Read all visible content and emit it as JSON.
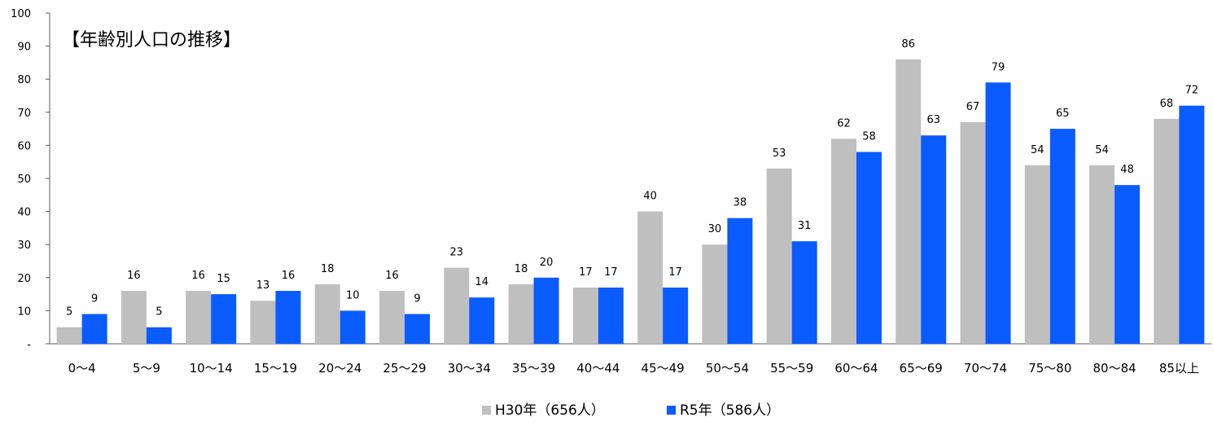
{
  "chart_data": {
    "type": "bar",
    "title": "【年齢別人口の推移】",
    "categories": [
      "0～4",
      "5～9",
      "10～14",
      "15～19",
      "20～24",
      "25～29",
      "30～34",
      "35～39",
      "40～44",
      "45～49",
      "50～54",
      "55～59",
      "60～64",
      "65～69",
      "70～74",
      "75～80",
      "80～84",
      "85以上"
    ],
    "series": [
      {
        "name": "H30年（656人）",
        "color": "#bfbfbf",
        "values": [
          5,
          16,
          16,
          13,
          18,
          16,
          23,
          18,
          17,
          40,
          30,
          53,
          62,
          86,
          67,
          54,
          54,
          68
        ]
      },
      {
        "name": "R5年（586人）",
        "color": "#0a5cff",
        "values": [
          9,
          5,
          15,
          16,
          10,
          9,
          14,
          20,
          17,
          17,
          38,
          31,
          58,
          63,
          79,
          65,
          48,
          72
        ]
      }
    ],
    "ylim": [
      0,
      100
    ],
    "yticks": [
      "-",
      "10",
      "20",
      "30",
      "40",
      "50",
      "60",
      "70",
      "80",
      "90",
      "100"
    ],
    "legend_position": "bottom-center",
    "grid": false
  }
}
